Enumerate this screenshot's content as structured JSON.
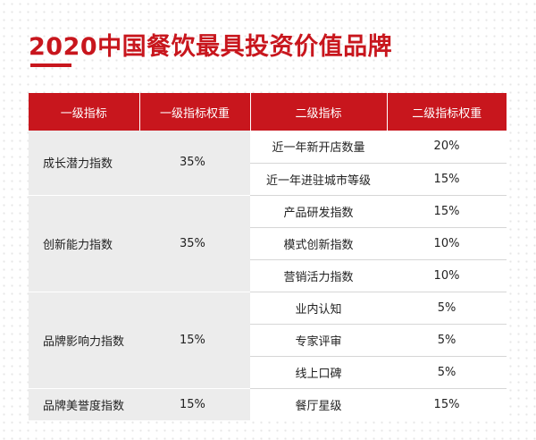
{
  "title": "2020中国餐饮最具投资价值品牌",
  "table": {
    "headers": [
      "一级指标",
      "一级指标权重",
      "二级指标",
      "二级指标权重"
    ],
    "rows": [
      {
        "level1": "成长潜力指数",
        "level1_weight": "35%",
        "level2": [
          {
            "name": "近一年新开店数量",
            "weight": "20%"
          },
          {
            "name": "近一年进驻城市等级",
            "weight": "15%"
          }
        ]
      },
      {
        "level1": "创新能力指数",
        "level1_weight": "35%",
        "level2": [
          {
            "name": "产品研发指数",
            "weight": "15%"
          },
          {
            "name": "模式创新指数",
            "weight": "10%"
          },
          {
            "name": "营销活力指数",
            "weight": "10%"
          }
        ]
      },
      {
        "level1": "品牌影响力指数",
        "level1_weight": "15%",
        "level2": [
          {
            "name": "业内认知",
            "weight": "5%"
          },
          {
            "name": "专家评审",
            "weight": "5%"
          },
          {
            "name": "线上口碑",
            "weight": "5%"
          }
        ]
      },
      {
        "level1": "品牌美誉度指数",
        "level1_weight": "15%",
        "level2": [
          {
            "name": "餐厅星级",
            "weight": "15%"
          }
        ]
      }
    ]
  }
}
